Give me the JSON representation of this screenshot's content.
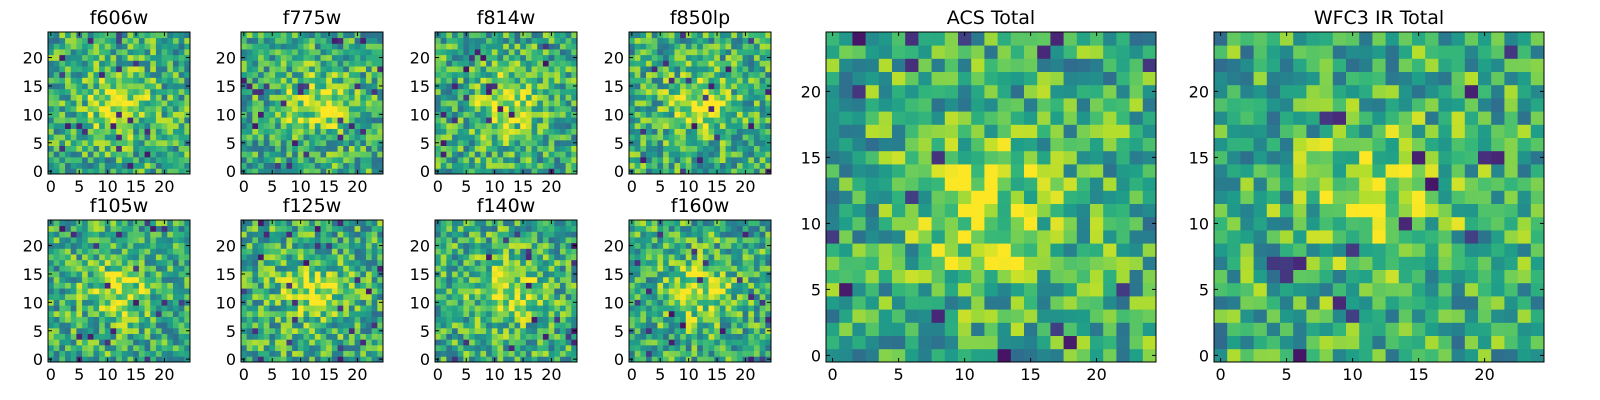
{
  "chart_data": [
    {
      "type": "heatmap",
      "title": "f606w",
      "xticks": [
        0,
        5,
        10,
        15,
        20
      ],
      "yticks": [
        0,
        5,
        10,
        15,
        20
      ],
      "xlim": [
        0,
        24
      ],
      "ylim": [
        0,
        24
      ],
      "grid_size": 25,
      "colormap": "viridis",
      "grid": false,
      "peak": [
        12,
        12
      ],
      "seed": 11
    },
    {
      "type": "heatmap",
      "title": "f775w",
      "xticks": [
        0,
        5,
        10,
        15,
        20
      ],
      "yticks": [
        0,
        5,
        10,
        15,
        20
      ],
      "xlim": [
        0,
        24
      ],
      "ylim": [
        0,
        24
      ],
      "grid_size": 25,
      "colormap": "viridis",
      "grid": false,
      "peak": [
        13,
        12
      ],
      "seed": 23
    },
    {
      "type": "heatmap",
      "title": "f814w",
      "xticks": [
        0,
        5,
        10,
        15,
        20
      ],
      "yticks": [
        0,
        5,
        10,
        15,
        20
      ],
      "xlim": [
        0,
        24
      ],
      "ylim": [
        0,
        24
      ],
      "grid_size": 25,
      "colormap": "viridis",
      "grid": false,
      "peak": [
        12,
        12
      ],
      "seed": 37
    },
    {
      "type": "heatmap",
      "title": "f850lp",
      "xticks": [
        0,
        5,
        10,
        15,
        20
      ],
      "yticks": [
        0,
        5,
        10,
        15,
        20
      ],
      "xlim": [
        0,
        24
      ],
      "ylim": [
        0,
        24
      ],
      "grid_size": 25,
      "colormap": "viridis",
      "grid": false,
      "peak": [
        12,
        12
      ],
      "seed": 41
    },
    {
      "type": "heatmap",
      "title": "f105w",
      "xticks": [
        0,
        5,
        10,
        15,
        20
      ],
      "yticks": [
        0,
        5,
        10,
        15,
        20
      ],
      "xlim": [
        0,
        24
      ],
      "ylim": [
        0,
        24
      ],
      "grid_size": 25,
      "colormap": "viridis",
      "grid": false,
      "peak": [
        12,
        12
      ],
      "seed": 53
    },
    {
      "type": "heatmap",
      "title": "f125w",
      "xticks": [
        0,
        5,
        10,
        15,
        20
      ],
      "yticks": [
        0,
        5,
        10,
        15,
        20
      ],
      "xlim": [
        0,
        24
      ],
      "ylim": [
        0,
        24
      ],
      "grid_size": 25,
      "colormap": "viridis",
      "grid": false,
      "peak": [
        12,
        12
      ],
      "seed": 67
    },
    {
      "type": "heatmap",
      "title": "f140w",
      "xticks": [
        0,
        5,
        10,
        15,
        20
      ],
      "yticks": [
        0,
        5,
        10,
        15,
        20
      ],
      "xlim": [
        0,
        24
      ],
      "ylim": [
        0,
        24
      ],
      "grid_size": 25,
      "colormap": "viridis",
      "grid": false,
      "peak": [
        12,
        12
      ],
      "seed": 79
    },
    {
      "type": "heatmap",
      "title": "f160w",
      "xticks": [
        0,
        5,
        10,
        15,
        20
      ],
      "yticks": [
        0,
        5,
        10,
        15,
        20
      ],
      "xlim": [
        0,
        24
      ],
      "ylim": [
        0,
        24
      ],
      "grid_size": 25,
      "colormap": "viridis",
      "grid": false,
      "peak": [
        12,
        12
      ],
      "seed": 83
    },
    {
      "type": "heatmap",
      "title": "ACS Total",
      "xticks": [
        0,
        5,
        10,
        15,
        20
      ],
      "yticks": [
        0,
        5,
        10,
        15,
        20
      ],
      "xlim": [
        0,
        24
      ],
      "ylim": [
        0,
        24
      ],
      "grid_size": 25,
      "colormap": "viridis",
      "grid": false,
      "peak": [
        12,
        11
      ],
      "seed": 97
    },
    {
      "type": "heatmap",
      "title": "WFC3 IR Total",
      "xticks": [
        0,
        5,
        10,
        15,
        20
      ],
      "yticks": [
        0,
        5,
        10,
        15,
        20
      ],
      "xlim": [
        0,
        24
      ],
      "ylim": [
        0,
        24
      ],
      "grid_size": 25,
      "colormap": "viridis",
      "grid": false,
      "peak": [
        12,
        12
      ],
      "seed": 101
    }
  ]
}
